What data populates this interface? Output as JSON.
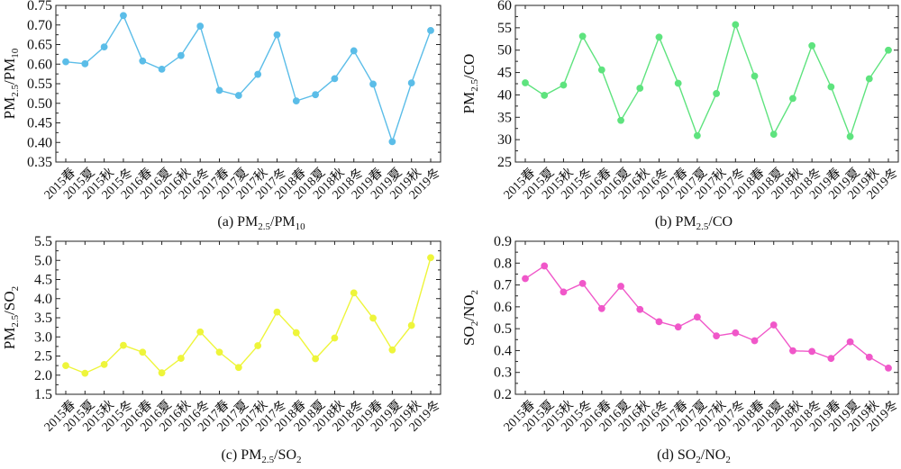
{
  "chart_data": [
    {
      "type": "line",
      "caption": "(a) PM2.5/PM10",
      "ylabel": "PM2.5/PM10",
      "ylim": [
        0.35,
        0.75
      ],
      "yticks": [
        "0.35",
        "0.40",
        "0.45",
        "0.50",
        "0.55",
        "0.60",
        "0.65",
        "0.70",
        "0.75"
      ],
      "color": "#5bbde8",
      "categories": [
        "2015春",
        "2015夏",
        "2015秋",
        "2015冬",
        "2016春",
        "2016夏",
        "2016秋",
        "2016冬",
        "2017春",
        "2017夏",
        "2017秋",
        "2017冬",
        "2018春",
        "2018夏",
        "2018秋",
        "2018冬",
        "2019春",
        "2019夏",
        "2019秋",
        "2019冬"
      ],
      "values": [
        0.606,
        0.601,
        0.644,
        0.724,
        0.608,
        0.587,
        0.622,
        0.697,
        0.533,
        0.52,
        0.574,
        0.675,
        0.506,
        0.522,
        0.563,
        0.634,
        0.549,
        0.402,
        0.552,
        0.686
      ]
    },
    {
      "type": "line",
      "caption": "(b) PM2.5/CO",
      "ylabel": "PM2.5/CO",
      "ylim": [
        25,
        60
      ],
      "yticks": [
        "25",
        "30",
        "35",
        "40",
        "45",
        "50",
        "55",
        "60"
      ],
      "color": "#5ee37e",
      "categories": [
        "2015春",
        "2015夏",
        "2015秋",
        "2015冬",
        "2016春",
        "2016夏",
        "2016秋",
        "2016冬",
        "2017春",
        "2017夏",
        "2017秋",
        "2017冬",
        "2018春",
        "2018夏",
        "2018秋",
        "2018冬",
        "2019春",
        "2019夏",
        "2019秋",
        "2019冬"
      ],
      "values": [
        42.7,
        39.9,
        42.2,
        53.1,
        45.6,
        34.3,
        41.5,
        52.9,
        42.6,
        30.9,
        40.3,
        55.7,
        44.2,
        31.2,
        39.2,
        51.0,
        41.8,
        30.7,
        43.6,
        50.0
      ]
    },
    {
      "type": "line",
      "caption": "(c) PM2.5/SO2",
      "ylabel": "PM2.5/SO2",
      "ylim": [
        1.5,
        5.5
      ],
      "yticks": [
        "1.5",
        "2.0",
        "2.5",
        "3.0",
        "3.5",
        "4.0",
        "4.5",
        "5.0",
        "5.5"
      ],
      "color": "#eef53a",
      "categories": [
        "2015春",
        "2015夏",
        "2015秋",
        "2015冬",
        "2016春",
        "2016夏",
        "2016秋",
        "2016冬",
        "2017春",
        "2017夏",
        "2017秋",
        "2017冬",
        "2018春",
        "2018夏",
        "2018秋",
        "2018冬",
        "2019春",
        "2019夏",
        "2019秋",
        "2019冬"
      ],
      "values": [
        2.25,
        2.05,
        2.28,
        2.78,
        2.6,
        2.06,
        2.44,
        3.13,
        2.6,
        2.2,
        2.77,
        3.65,
        3.11,
        2.43,
        2.97,
        4.15,
        3.49,
        2.66,
        3.3,
        5.07
      ]
    },
    {
      "type": "line",
      "caption": "(d) SO2/NO2",
      "ylabel": "SO2/NO2",
      "ylim": [
        0.2,
        0.9
      ],
      "yticks": [
        "0.2",
        "0.3",
        "0.4",
        "0.5",
        "0.6",
        "0.7",
        "0.8",
        "0.9"
      ],
      "color": "#f057c9",
      "categories": [
        "2015春",
        "2015夏",
        "2015秋",
        "2015冬",
        "2016春",
        "2016夏",
        "2016秋",
        "2016冬",
        "2017春",
        "2017夏",
        "2017秋",
        "2017冬",
        "2018春",
        "2018夏",
        "2018秋",
        "2018冬",
        "2019春",
        "2019夏",
        "2019秋",
        "2019冬"
      ],
      "values": [
        0.729,
        0.787,
        0.668,
        0.707,
        0.592,
        0.694,
        0.588,
        0.532,
        0.508,
        0.553,
        0.467,
        0.481,
        0.445,
        0.517,
        0.399,
        0.396,
        0.364,
        0.44,
        0.37,
        0.32
      ]
    }
  ]
}
